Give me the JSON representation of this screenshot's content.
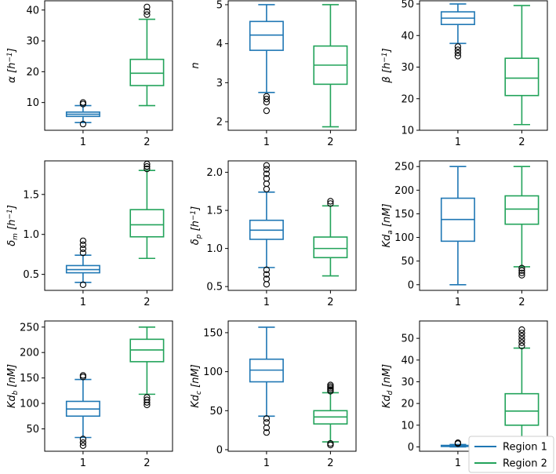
{
  "colors": {
    "region1": "#1f77b4",
    "region2": "#22a35a",
    "axis": "#000000"
  },
  "legend": {
    "placement": "bottom-right",
    "entries": [
      {
        "label": "Region 1",
        "color": "#1f77b4"
      },
      {
        "label": "Region 2",
        "color": "#22a35a"
      }
    ]
  },
  "chart_data": [
    {
      "type": "box",
      "id": "alpha",
      "ylabel": "α [h⁻¹]",
      "ylabel_text": "α [h",
      "ylabel_sup": "−1",
      "ylabel_tail": "]",
      "ylim": [
        1,
        43
      ],
      "yticks": [
        10,
        20,
        30,
        40
      ],
      "ytick_labels": [
        "10",
        "20",
        "30",
        "40"
      ],
      "categories": [
        "1",
        "2"
      ],
      "boxes": [
        {
          "whislo": 3.5,
          "q1": 5.5,
          "med": 6.2,
          "q3": 6.9,
          "whishi": 9.0,
          "fliers": [
            3.0,
            9.5,
            10.0
          ]
        },
        {
          "whislo": 9.0,
          "q1": 15.5,
          "med": 19.5,
          "q3": 24.0,
          "whishi": 37.0,
          "fliers": [
            38.5,
            39.5,
            41.0
          ]
        }
      ]
    },
    {
      "type": "box",
      "id": "n",
      "ylabel": "n",
      "ylabel_text": "n",
      "ylabel_sup": "",
      "ylabel_tail": "",
      "ylim": [
        1.78,
        5.1
      ],
      "yticks": [
        2,
        3,
        4,
        5
      ],
      "ytick_labels": [
        "2",
        "3",
        "4",
        "5"
      ],
      "categories": [
        "1",
        "2"
      ],
      "boxes": [
        {
          "whislo": 2.75,
          "q1": 3.83,
          "med": 4.22,
          "q3": 4.57,
          "whishi": 5.0,
          "fliers": [
            2.28,
            2.5,
            2.58,
            2.65
          ]
        },
        {
          "whislo": 1.87,
          "q1": 2.96,
          "med": 3.45,
          "q3": 3.94,
          "whishi": 5.0,
          "fliers": []
        }
      ]
    },
    {
      "type": "box",
      "id": "beta",
      "ylabel": "β [h⁻¹]",
      "ylabel_text": "β [h",
      "ylabel_sup": "−1",
      "ylabel_tail": "]",
      "ylim": [
        10,
        51
      ],
      "yticks": [
        10,
        20,
        30,
        40,
        50
      ],
      "ytick_labels": [
        "10",
        "20",
        "30",
        "40",
        "50"
      ],
      "categories": [
        "1",
        "2"
      ],
      "boxes": [
        {
          "whislo": 37.5,
          "q1": 43.5,
          "med": 45.5,
          "q3": 47.5,
          "whishi": 50.0,
          "fliers": [
            33.5,
            34.5,
            35.5,
            36.5
          ]
        },
        {
          "whislo": 11.8,
          "q1": 21.0,
          "med": 26.5,
          "q3": 32.8,
          "whishi": 49.5,
          "fliers": []
        }
      ]
    },
    {
      "type": "box",
      "id": "delta_m",
      "ylabel": "δm [h⁻¹]",
      "ylabel_text": "δ",
      "ylabel_sub": "m",
      "ylabel_mid": " [h",
      "ylabel_sup": "−1",
      "ylabel_tail": "]",
      "ylim": [
        0.3,
        1.92
      ],
      "yticks": [
        0.5,
        1.0,
        1.5
      ],
      "ytick_labels": [
        "0.5",
        "1.0",
        "1.5"
      ],
      "categories": [
        "1",
        "2"
      ],
      "boxes": [
        {
          "whislo": 0.4,
          "q1": 0.52,
          "med": 0.56,
          "q3": 0.61,
          "whishi": 0.74,
          "fliers": [
            0.37,
            0.77,
            0.82,
            0.87,
            0.92
          ]
        },
        {
          "whislo": 0.7,
          "q1": 0.97,
          "med": 1.12,
          "q3": 1.31,
          "whishi": 1.8,
          "fliers": [
            1.82,
            1.85,
            1.88
          ]
        }
      ]
    },
    {
      "type": "box",
      "id": "delta_p",
      "ylabel": "δp [h⁻¹]",
      "ylabel_text": "δ",
      "ylabel_sub": "p",
      "ylabel_mid": " [h",
      "ylabel_sup": "−1",
      "ylabel_tail": "]",
      "ylim": [
        0.45,
        2.15
      ],
      "yticks": [
        0.5,
        1.0,
        1.5,
        2.0
      ],
      "ytick_labels": [
        "0.5",
        "1.0",
        "1.5",
        "2.0"
      ],
      "categories": [
        "1",
        "2"
      ],
      "boxes": [
        {
          "whislo": 0.75,
          "q1": 1.12,
          "med": 1.24,
          "q3": 1.37,
          "whishi": 1.74,
          "fliers": [
            0.53,
            0.6,
            0.66,
            0.72,
            1.78,
            1.85,
            1.92,
            1.98,
            2.04,
            2.09
          ]
        },
        {
          "whislo": 0.64,
          "q1": 0.88,
          "med": 1.0,
          "q3": 1.15,
          "whishi": 1.56,
          "fliers": [
            1.59,
            1.62
          ]
        }
      ]
    },
    {
      "type": "box",
      "id": "kd_a",
      "ylabel": "Kda [nM]",
      "ylabel_text": "Kd",
      "ylabel_sub": "a",
      "ylabel_mid": " [nM]",
      "ylabel_sup": "",
      "ylabel_tail": "",
      "ylim": [
        -12,
        262
      ],
      "yticks": [
        0,
        50,
        100,
        150,
        200,
        250
      ],
      "ytick_labels": [
        "0",
        "50",
        "100",
        "150",
        "200",
        "250"
      ],
      "categories": [
        "1",
        "2"
      ],
      "boxes": [
        {
          "whislo": 0,
          "q1": 92,
          "med": 138,
          "q3": 183,
          "whishi": 250,
          "fliers": []
        },
        {
          "whislo": 38,
          "q1": 128,
          "med": 160,
          "q3": 188,
          "whishi": 250,
          "fliers": [
            20,
            25,
            30,
            35
          ]
        }
      ]
    },
    {
      "type": "box",
      "id": "kd_b",
      "ylabel": "Kdb [nM]",
      "ylabel_text": "Kd",
      "ylabel_sub": "b",
      "ylabel_mid": " [nM]",
      "ylabel_sup": "",
      "ylabel_tail": "",
      "ylim": [
        6,
        262
      ],
      "yticks": [
        50,
        100,
        150,
        200,
        250
      ],
      "ytick_labels": [
        "50",
        "100",
        "150",
        "200",
        "250"
      ],
      "categories": [
        "1",
        "2"
      ],
      "boxes": [
        {
          "whislo": 33,
          "q1": 75,
          "med": 89,
          "q3": 104,
          "whishi": 147,
          "fliers": [
            17,
            23,
            30,
            152,
            155
          ]
        },
        {
          "whislo": 118,
          "q1": 182,
          "med": 205,
          "q3": 226,
          "whishi": 250,
          "fliers": [
            97,
            102,
            107,
            112
          ]
        }
      ]
    },
    {
      "type": "box",
      "id": "kd_c",
      "ylabel": "Kdc [nM]",
      "ylabel_text": "Kd",
      "ylabel_sub": "c",
      "ylabel_mid": " [nM]",
      "ylabel_sup": "",
      "ylabel_tail": "",
      "ylim": [
        -2,
        165
      ],
      "yticks": [
        0,
        50,
        100,
        150
      ],
      "ytick_labels": [
        "0",
        "50",
        "100",
        "150"
      ],
      "categories": [
        "1",
        "2"
      ],
      "boxes": [
        {
          "whislo": 43,
          "q1": 87,
          "med": 102,
          "q3": 116,
          "whishi": 157,
          "fliers": [
            22,
            28,
            35,
            40
          ]
        },
        {
          "whislo": 10,
          "q1": 33,
          "med": 42,
          "q3": 50,
          "whishi": 73,
          "fliers": [
            6,
            8,
            75,
            77,
            79,
            81,
            83
          ]
        }
      ]
    },
    {
      "type": "box",
      "id": "kd_d",
      "ylabel": "Kdd [nM]",
      "ylabel_text": "Kd",
      "ylabel_sub": "d",
      "ylabel_mid": " [nM]",
      "ylabel_sup": "",
      "ylabel_tail": "",
      "ylim": [
        -2,
        58
      ],
      "yticks": [
        0,
        10,
        20,
        30,
        40,
        50
      ],
      "ytick_labels": [
        "0",
        "10",
        "20",
        "30",
        "40",
        "50"
      ],
      "categories": [
        "1",
        "2"
      ],
      "boxes": [
        {
          "whislo": 0.0,
          "q1": 0.2,
          "med": 0.4,
          "q3": 0.7,
          "whishi": 1.1,
          "fliers": [
            1.5,
            1.9
          ]
        },
        {
          "whislo": 0.0,
          "q1": 10.0,
          "med": 16.5,
          "q3": 24.5,
          "whishi": 45.5,
          "fliers": [
            46.5,
            48,
            49.5,
            51,
            52.5,
            54
          ]
        }
      ]
    }
  ]
}
